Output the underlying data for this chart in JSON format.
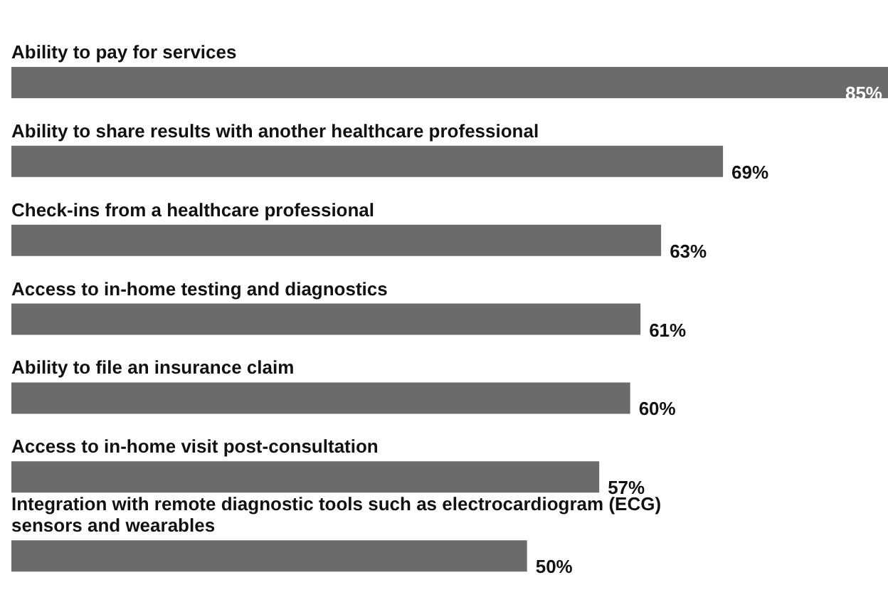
{
  "chart_data": {
    "type": "bar",
    "orientation": "horizontal",
    "categories": [
      "Ability to pay for services",
      "Ability to share results with another healthcare professional",
      "Check-ins from a healthcare professional",
      "Access to in-home testing and diagnostics",
      "Ability to file an insurance claim",
      "Access to in-home visit post-consultation",
      "Integration with remote diagnostic tools such as electrocardiogram (ECG) sensors and wearables"
    ],
    "values": [
      85,
      69,
      63,
      61,
      60,
      57,
      50
    ],
    "value_labels": [
      "85%",
      "69%",
      "63%",
      "61%",
      "60%",
      "57%",
      "50%"
    ],
    "color": "#6b6b6b",
    "xlim": [
      0,
      85
    ],
    "tick_labels": false,
    "grid": false,
    "legend": false
  }
}
